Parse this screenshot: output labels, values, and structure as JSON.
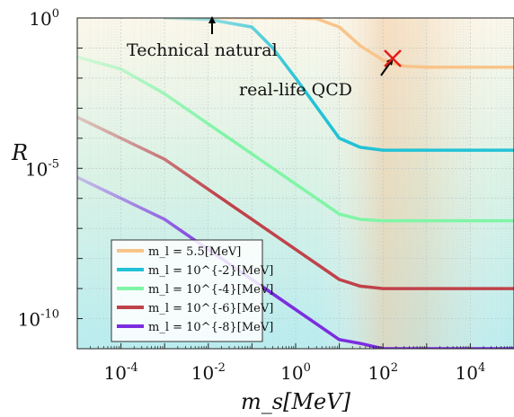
{
  "chart_data": {
    "type": "line",
    "title": "",
    "xlabel": "m_s[MeV]",
    "ylabel": "R",
    "x_scale": "log",
    "y_scale": "log",
    "xlim": [
      1e-05,
      100000
    ],
    "ylim": [
      1e-11,
      1
    ],
    "x_ticks": [
      {
        "value": 0.0001,
        "base": "10",
        "exp": "-4"
      },
      {
        "value": 0.01,
        "base": "10",
        "exp": "-2"
      },
      {
        "value": 1,
        "base": "10",
        "exp": "0"
      },
      {
        "value": 100,
        "base": "10",
        "exp": "2"
      },
      {
        "value": 10000,
        "base": "10",
        "exp": "4"
      }
    ],
    "y_ticks": [
      {
        "value": 1,
        "base": "10",
        "exp": "0"
      },
      {
        "value": 1e-05,
        "base": "10",
        "exp": "-5"
      },
      {
        "value": 1e-10,
        "base": "10",
        "exp": "-10"
      }
    ],
    "grid": true,
    "legend_position": "bottom-left",
    "series": [
      {
        "name": "m_l = 5.5[MeV]",
        "color": "#f9c48a",
        "x": [
          0.001,
          0.01,
          0.1,
          1,
          3,
          10,
          30,
          100,
          300,
          1000,
          10000,
          100000
        ],
        "y": [
          1,
          1,
          1,
          1,
          0.95,
          0.5,
          0.12,
          0.04,
          0.025,
          0.023,
          0.023,
          0.023
        ]
      },
      {
        "name": "m_l = 10^{-2}[MeV]",
        "color": "#22c2d6",
        "x": [
          0.001,
          0.01,
          0.1,
          0.3,
          1,
          10,
          30,
          100,
          300,
          1000,
          10000,
          100000
        ],
        "y": [
          1,
          0.9,
          0.5,
          0.1,
          0.01,
          0.0001,
          5e-05,
          4e-05,
          4e-05,
          4e-05,
          4e-05,
          4e-05
        ]
      },
      {
        "name": "m_l = 10^{-4}[MeV]",
        "color": "#80f5a6",
        "x": [
          1e-05,
          0.0001,
          0.001,
          0.01,
          0.1,
          1,
          10,
          30,
          100,
          1000,
          100000
        ],
        "y": [
          0.05,
          0.02,
          0.003,
          0.0003,
          3e-05,
          3e-06,
          3e-07,
          2e-07,
          1.8e-07,
          1.8e-07,
          1.8e-07
        ]
      },
      {
        "name": "m_l = 10^{-6}[MeV]",
        "color": "#c0424a",
        "x": [
          1e-05,
          0.0001,
          0.001,
          0.01,
          0.1,
          1,
          10,
          30,
          100,
          1000,
          100000
        ],
        "y": [
          0.0005,
          0.0001,
          2e-05,
          2e-06,
          2e-07,
          2e-08,
          2e-09,
          1.2e-09,
          1e-09,
          1e-09,
          1e-09
        ]
      },
      {
        "name": "m_l = 10^{-8}[MeV]",
        "color": "#7b2de0",
        "x": [
          1e-05,
          0.0001,
          0.001,
          0.01,
          0.1,
          1,
          10,
          30,
          100,
          1000,
          100000
        ],
        "y": [
          5e-06,
          1e-06,
          2e-07,
          2e-08,
          2e-09,
          2e-10,
          2e-11,
          1.5e-11,
          1e-11,
          1e-11,
          1e-11
        ]
      }
    ],
    "annotations": {
      "technical_natural": {
        "text": "Technical natural",
        "x": 0.01,
        "y": 1
      },
      "real_life_qcd": {
        "text": "real-life  QCD",
        "x": 140,
        "y": 0.04
      }
    }
  }
}
